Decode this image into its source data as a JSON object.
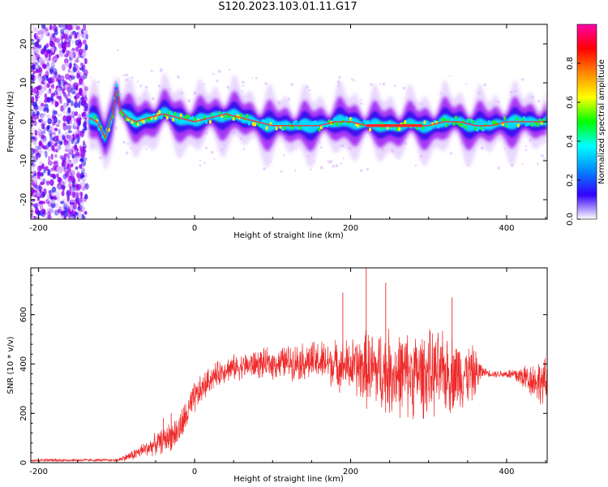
{
  "title": "S120.2023.103.01.11.G17",
  "colors": {
    "snr_line": "#ee2a2a",
    "ridge_core": "#ff2a2a",
    "ridge_mid": "#22ee22",
    "ridge_cyan": "#00e0ff",
    "cloud_blue": "#3010f0",
    "cloud_violet": "#9000f0",
    "cloud_light": "#d8b8ff"
  },
  "chart_data": [
    {
      "type": "heatmap",
      "xlabel": "Height of straight line (km)",
      "ylabel": "Frequency (Hz)",
      "xlim": [
        -210,
        452
      ],
      "ylim": [
        -25,
        25
      ],
      "xticks": [
        "-200",
        "0",
        "200",
        "400"
      ],
      "yticks": [
        "-20",
        "-10",
        "0",
        "10",
        "20"
      ],
      "grid": false,
      "colorbar": {
        "label": "Normalized spectral amplitude",
        "range": [
          0,
          1
        ],
        "ticks": [
          "0.0",
          "0.2",
          "0.4",
          "0.6",
          "0.8"
        ],
        "colormap": [
          "#ffffff",
          "#3300ff",
          "#0088ff",
          "#00ffff",
          "#00ff00",
          "#ffff00",
          "#ff8800",
          "#ff0000",
          "#ff00aa"
        ]
      },
      "ridge": {
        "x": [
          -135,
          -125,
          -115,
          -105,
          -100,
          -95,
          -85,
          -75,
          -60,
          -40,
          -20,
          0,
          20,
          40,
          60,
          80,
          100,
          120,
          140,
          160,
          180,
          200,
          220,
          240,
          260,
          280,
          300,
          320,
          340,
          360,
          380,
          400,
          420,
          440,
          452
        ],
        "y": [
          1,
          0,
          -4,
          2,
          9,
          3,
          1,
          0,
          1,
          2,
          1,
          0,
          1,
          2,
          1,
          0,
          -1,
          -1,
          -1,
          -1,
          0,
          0,
          -1,
          -1,
          -1,
          -1,
          -1,
          0,
          0,
          -1,
          -1,
          0,
          0,
          0,
          0
        ]
      },
      "noise_region_x": [
        -210,
        -138
      ]
    },
    {
      "type": "line",
      "xlabel": "Height of straight line (km)",
      "ylabel": "SNR (10 * v/v)",
      "xlim": [
        -210,
        452
      ],
      "ylim": [
        0,
        790
      ],
      "xticks": [
        "-200",
        "0",
        "200",
        "400"
      ],
      "yticks": [
        "0",
        "200",
        "400",
        "600"
      ],
      "grid": false,
      "series": [
        {
          "x": [
            -210,
            -150,
            -100,
            -80,
            -60,
            -40,
            -20,
            0,
            20,
            40,
            60,
            80,
            100,
            120,
            140,
            160,
            180,
            200,
            220,
            240,
            260,
            280,
            300,
            320,
            340,
            360,
            370,
            380,
            400,
            420,
            440,
            452
          ],
          "mean": [
            10,
            10,
            10,
            30,
            60,
            90,
            130,
            260,
            340,
            380,
            390,
            400,
            400,
            410,
            410,
            410,
            400,
            390,
            380,
            370,
            360,
            360,
            360,
            360,
            360,
            360,
            370,
            360,
            360,
            350,
            330,
            320
          ],
          "amp": [
            8,
            6,
            6,
            25,
            40,
            60,
            80,
            80,
            60,
            60,
            60,
            70,
            70,
            80,
            90,
            100,
            110,
            130,
            180,
            200,
            200,
            200,
            200,
            190,
            170,
            120,
            20,
            15,
            20,
            60,
            100,
            120
          ],
          "peaks": [
            [
              -40,
              180
            ],
            [
              -30,
              200
            ],
            [
              -10,
              200
            ],
            [
              190,
              690
            ],
            [
              220,
              790
            ],
            [
              245,
              730
            ],
            [
              330,
              670
            ]
          ]
        }
      ]
    }
  ]
}
